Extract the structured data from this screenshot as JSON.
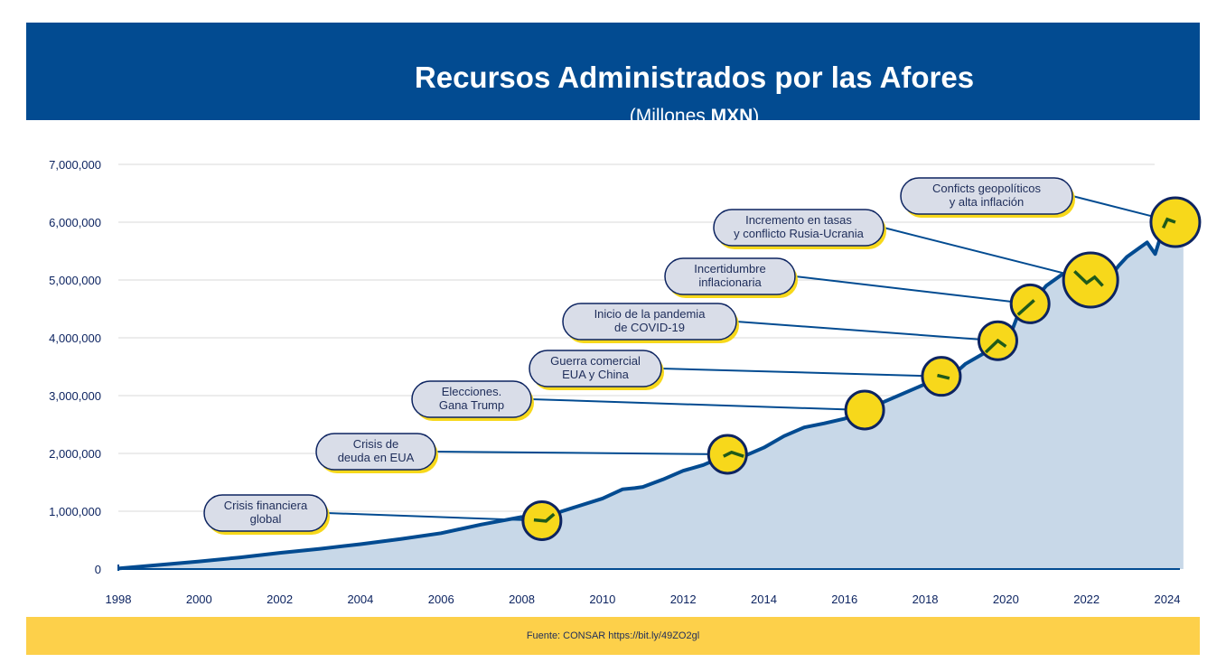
{
  "header": {
    "title": "Recursos Administrados por las Afores",
    "subtitle_prefix": "(Millones ",
    "subtitle_bold": "MXN",
    "subtitle_suffix": ")"
  },
  "footer": {
    "source": "Fuente: CONSAR https://bit.ly/49ZO2gl"
  },
  "colors": {
    "header": "#024b91",
    "line": "#024b91",
    "area": "#c8d8e8",
    "highlight": "#f7d81b",
    "highlight_line": "#1f5a1a",
    "footer": "#fdd04a",
    "callout": "#d9dde8"
  },
  "chart_data": {
    "type": "area",
    "title": "Recursos Administrados por las Afores",
    "ylabel": "",
    "xlabel": "",
    "ylim": [
      0,
      7000000
    ],
    "xlim": [
      1998,
      2024.4
    ],
    "grid": true,
    "yticks": [
      "0",
      "1,000,000",
      "2,000,000",
      "3,000,000",
      "4,000,000",
      "5,000,000",
      "6,000,000",
      "7,000,000"
    ],
    "xticks": [
      "1998",
      "2000",
      "2002",
      "2004",
      "2006",
      "2008",
      "2010",
      "2012",
      "2014",
      "2016",
      "2018",
      "2020",
      "2022",
      "2024"
    ],
    "x": [
      1998,
      1999,
      2000,
      2001,
      2002,
      2003,
      2004,
      2005,
      2006,
      2007,
      2008,
      2008.3,
      2008.6,
      2008.8,
      2009,
      2010,
      2010.5,
      2010.8,
      2011,
      2011.5,
      2012,
      2012.5,
      2013,
      2013.2,
      2013.5,
      2014,
      2014.5,
      2015,
      2015.5,
      2016,
      2016.5,
      2017,
      2017.5,
      2018,
      2018.3,
      2018.6,
      2019,
      2019.5,
      2019.8,
      2020,
      2020.3,
      2020.7,
      2021,
      2021.4,
      2021.7,
      2022,
      2022.2,
      2022.4,
      2022.8,
      2023,
      2023.3,
      2023.5,
      2023.7,
      2023.9,
      2024,
      2024.2
    ],
    "values": [
      10000,
      70000,
      130000,
      200000,
      280000,
      350000,
      430000,
      520000,
      620000,
      770000,
      900000,
      850000,
      830000,
      950000,
      1000000,
      1220000,
      1380000,
      1400000,
      1420000,
      1550000,
      1700000,
      1800000,
      1950000,
      2020000,
      1950000,
      2100000,
      2300000,
      2450000,
      2520000,
      2600000,
      2750000,
      2900000,
      3050000,
      3200000,
      3350000,
      3300000,
      3550000,
      3750000,
      3950000,
      3850000,
      4400000,
      4650000,
      4900000,
      5100000,
      5150000,
      4950000,
      5050000,
      4900000,
      5250000,
      5400000,
      5550000,
      5650000,
      5450000,
      5900000,
      6050000,
      6000000
    ],
    "annotations": [
      {
        "label": [
          "Crisis financiera",
          "global"
        ],
        "x": 2008.5
      },
      {
        "label": [
          "Crisis de",
          "deuda en EUA"
        ],
        "x": 2013.1
      },
      {
        "label": [
          "Elecciones.",
          "Gana Trump"
        ],
        "x": 2016.5
      },
      {
        "label": [
          "Guerra comercial",
          "EUA y China"
        ],
        "x": 2018.4
      },
      {
        "label": [
          "Inicio de la pandemia",
          "de COVID-19"
        ],
        "x": 2019.8
      },
      {
        "label": [
          "Incertidumbre",
          "inflacionaria"
        ],
        "x": 2020.6
      },
      {
        "label": [
          "Incremento en tasas",
          "y conflicto Rusia-Ucrania"
        ],
        "x": 2022.1
      },
      {
        "label": [
          "Conficts geopolíticos",
          "y alta inflación"
        ],
        "x": 2024.2
      }
    ]
  }
}
